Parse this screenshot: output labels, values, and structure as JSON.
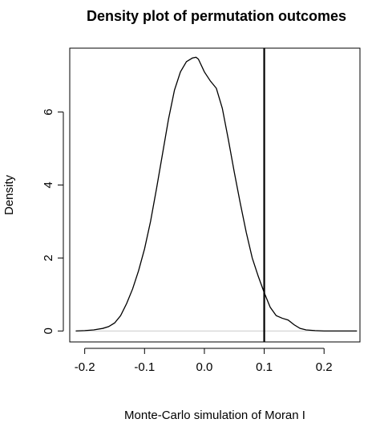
{
  "chart_data": {
    "type": "line",
    "title": "Density plot of permutation outcomes",
    "xlabel": "Monte-Carlo simulation of Moran I",
    "ylabel": "Density",
    "xlim": [
      -0.225,
      0.26
    ],
    "ylim": [
      -0.3,
      7.75
    ],
    "x_ticks": [
      -0.2,
      -0.1,
      0.0,
      0.1,
      0.2
    ],
    "x_tick_labels": [
      "-0.2",
      "-0.1",
      "0.0",
      "0.1",
      "0.2"
    ],
    "y_ticks": [
      0,
      2,
      4,
      6
    ],
    "y_tick_labels": [
      "0",
      "2",
      "4",
      "6"
    ],
    "grid": false,
    "series": [
      {
        "x": [
          -0.215,
          -0.2,
          -0.185,
          -0.17,
          -0.16,
          -0.15,
          -0.14,
          -0.13,
          -0.12,
          -0.11,
          -0.1,
          -0.09,
          -0.08,
          -0.07,
          -0.06,
          -0.05,
          -0.04,
          -0.03,
          -0.02,
          -0.014,
          -0.01,
          0.0,
          0.01,
          0.02,
          0.03,
          0.04,
          0.05,
          0.06,
          0.07,
          0.08,
          0.09,
          0.1,
          0.11,
          0.12,
          0.13,
          0.14,
          0.15,
          0.16,
          0.17,
          0.185,
          0.2,
          0.22,
          0.24,
          0.255
        ],
        "y": [
          0.0,
          0.01,
          0.03,
          0.07,
          0.12,
          0.22,
          0.42,
          0.75,
          1.15,
          1.65,
          2.25,
          3.0,
          3.9,
          4.85,
          5.8,
          6.6,
          7.1,
          7.38,
          7.48,
          7.5,
          7.45,
          7.1,
          6.85,
          6.65,
          6.1,
          5.25,
          4.35,
          3.5,
          2.7,
          2.0,
          1.5,
          1.05,
          0.65,
          0.42,
          0.35,
          0.3,
          0.17,
          0.07,
          0.03,
          0.01,
          0.0,
          0.0,
          0.0,
          0.0
        ]
      }
    ],
    "observed_value": 0.1,
    "baseline_y": 0
  }
}
